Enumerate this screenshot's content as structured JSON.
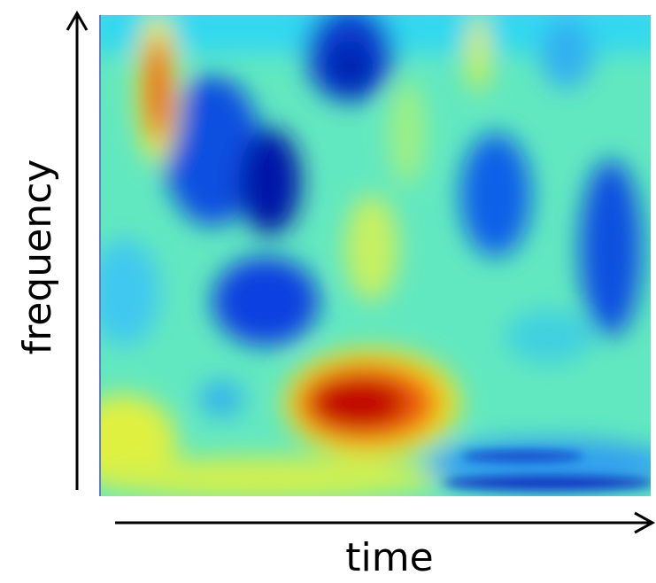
{
  "axes": {
    "y_label": "frequency",
    "x_label": "time"
  }
}
